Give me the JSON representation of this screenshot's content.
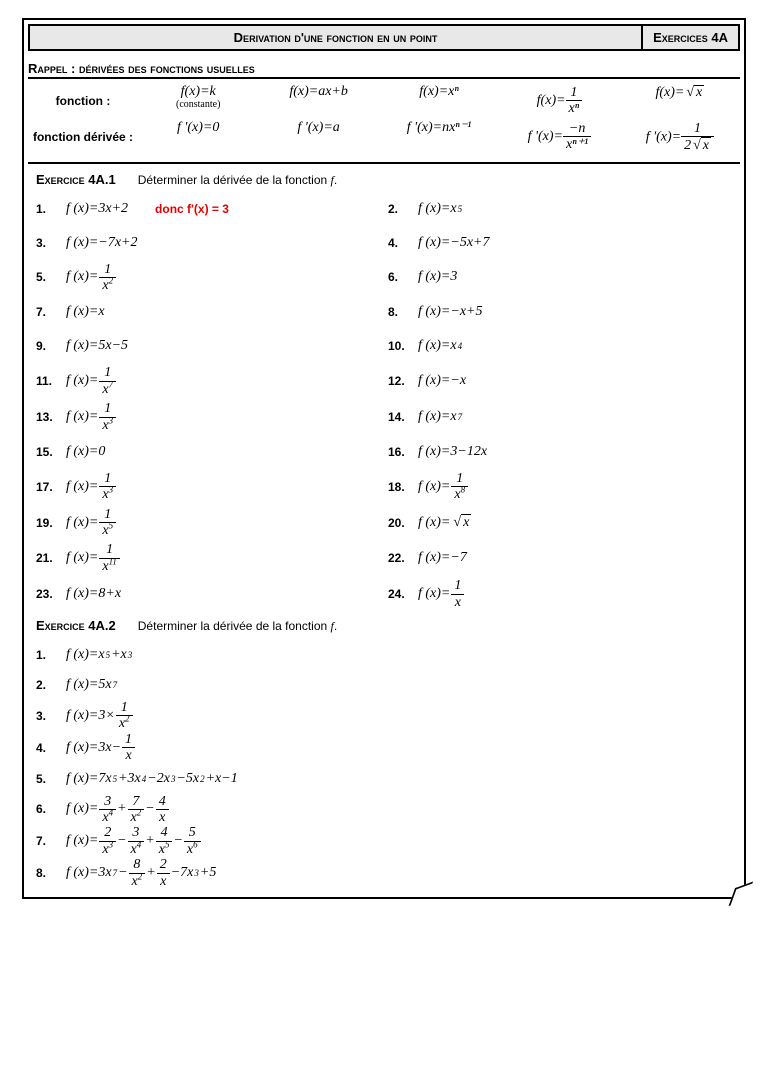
{
  "header": {
    "title": "Derivation d'une fonction en un point",
    "code": "Exercices 4A"
  },
  "rappel": {
    "title": "Rappel : dérivées des fonctions usuelles",
    "row_labels": [
      "fonction :",
      "fonction dérivée :"
    ],
    "constant_note": "(constante)",
    "functions": {
      "f1": "f(x)=k",
      "f2": "f(x)=ax+b",
      "f3": "f(x)=xⁿ",
      "f4_lhs": "f(x)=",
      "f4_num": "1",
      "f4_den": "xⁿ",
      "f5_lhs": "f(x)=",
      "f5_rad": "x"
    },
    "derivatives": {
      "d1": "f '(x)=0",
      "d2": "f '(x)=a",
      "d3": "f '(x)=nxⁿ⁻¹",
      "d4_lhs": "f '(x)=",
      "d4_num": "−n",
      "d4_den": "xⁿ⁺¹",
      "d5_lhs": "f '(x)=",
      "d5_num": "1",
      "d5_den_pre": "2",
      "d5_rad": "x"
    }
  },
  "ex1": {
    "title": "Exercice 4A.1",
    "instr": "Déterminer la dérivée de la fonction ",
    "instr_f": "f",
    "answer1": "donc f'(x) = 3",
    "items": [
      {
        "n": "1.",
        "type": "plain",
        "t": "f (x)=3x+2"
      },
      {
        "n": "2.",
        "type": "pow",
        "pre": "f (x)=x",
        "e": "5"
      },
      {
        "n": "3.",
        "type": "plain",
        "t": "f (x)=−7x+2"
      },
      {
        "n": "4.",
        "type": "plain",
        "t": "f (x)=−5x+7"
      },
      {
        "n": "5.",
        "type": "frac",
        "pre": "f (x)=",
        "num": "1",
        "den": "x",
        "de": "2"
      },
      {
        "n": "6.",
        "type": "plain",
        "t": "f (x)=3"
      },
      {
        "n": "7.",
        "type": "plain",
        "t": "f (x)=x"
      },
      {
        "n": "8.",
        "type": "plain",
        "t": "f (x)=−x+5"
      },
      {
        "n": "9.",
        "type": "plain",
        "t": "f (x)=5x−5"
      },
      {
        "n": "10.",
        "type": "pow",
        "pre": "f (x)=x",
        "e": "4"
      },
      {
        "n": "11.",
        "type": "frac",
        "pre": "f (x)=",
        "num": "1",
        "den": "x",
        "de": "7"
      },
      {
        "n": "12.",
        "type": "plain",
        "t": "f (x)=−x"
      },
      {
        "n": "13.",
        "type": "frac",
        "pre": "f (x)=",
        "num": "1",
        "den": "x",
        "de": "3"
      },
      {
        "n": "14.",
        "type": "pow",
        "pre": "f (x)=x",
        "e": "7"
      },
      {
        "n": "15.",
        "type": "plain",
        "t": "f (x)=0"
      },
      {
        "n": "16.",
        "type": "plain",
        "t": "f (x)=3−12x"
      },
      {
        "n": "17.",
        "type": "frac",
        "pre": "f (x)=",
        "num": "1",
        "den": "x",
        "de": "3"
      },
      {
        "n": "18.",
        "type": "frac",
        "pre": "f (x)=",
        "num": "1",
        "den": "x",
        "de": "8"
      },
      {
        "n": "19.",
        "type": "frac",
        "pre": "f (x)=",
        "num": "1",
        "den": "x",
        "de": "5"
      },
      {
        "n": "20.",
        "type": "sqrt",
        "pre": "f (x)=",
        "rad": "x"
      },
      {
        "n": "21.",
        "type": "frac",
        "pre": "f (x)=",
        "num": "1",
        "den": "x",
        "de": "11"
      },
      {
        "n": "22.",
        "type": "plain",
        "t": "f (x)=−7"
      },
      {
        "n": "23.",
        "type": "plain",
        "t": "f (x)=8+x"
      },
      {
        "n": "24.",
        "type": "frac",
        "pre": "f (x)=",
        "num": "1",
        "den": "x",
        "de": ""
      }
    ]
  },
  "ex2": {
    "title": "Exercice 4A.2",
    "instr": "Déterminer la dérivée de la fonction ",
    "instr_f": "f",
    "items": [
      {
        "n": "1.",
        "html": "f (x)=x<sup>5</sup>+x<sup>3</sup>"
      },
      {
        "n": "2.",
        "html": "f (x)=5x<sup>7</sup>"
      },
      {
        "n": "3.",
        "parts": [
          {
            "t": "f (x)=3×"
          },
          {
            "frac": {
              "num": "1",
              "den": "x",
              "de": "2"
            }
          }
        ]
      },
      {
        "n": "4.",
        "parts": [
          {
            "t": "f (x)=3x−"
          },
          {
            "frac": {
              "num": "1",
              "den": "x"
            }
          }
        ]
      },
      {
        "n": "5.",
        "html": "f (x)=7x<sup>5</sup>+3x<sup>4</sup>−2x<sup>3</sup>−5x<sup>2</sup>+x−1"
      },
      {
        "n": "6.",
        "parts": [
          {
            "t": "f (x)="
          },
          {
            "frac": {
              "num": "3",
              "den": "x",
              "de": "4"
            }
          },
          {
            "t": "+"
          },
          {
            "frac": {
              "num": "7",
              "den": "x",
              "de": "2"
            }
          },
          {
            "t": "−"
          },
          {
            "frac": {
              "num": "4",
              "den": "x"
            }
          }
        ]
      },
      {
        "n": "7.",
        "parts": [
          {
            "t": "f (x)="
          },
          {
            "frac": {
              "num": "2",
              "den": "x",
              "de": "3"
            }
          },
          {
            "t": "−"
          },
          {
            "frac": {
              "num": "3",
              "den": "x",
              "de": "4"
            }
          },
          {
            "t": "+"
          },
          {
            "frac": {
              "num": "4",
              "den": "x",
              "de": "5"
            }
          },
          {
            "t": "−"
          },
          {
            "frac": {
              "num": "5",
              "den": "x",
              "de": "6"
            }
          }
        ]
      },
      {
        "n": "8.",
        "parts": [
          {
            "t": "f (x)=3x"
          },
          {
            "sup": "7"
          },
          {
            "t": "−"
          },
          {
            "frac": {
              "num": "8",
              "den": "x",
              "de": "2"
            }
          },
          {
            "t": "+"
          },
          {
            "frac": {
              "num": "2",
              "den": "x"
            }
          },
          {
            "t": "−7x"
          },
          {
            "sup": "3"
          },
          {
            "t": "+5"
          }
        ]
      }
    ]
  },
  "colors": {
    "answer": "#e30000",
    "title_bg": "#e8e8e8"
  }
}
